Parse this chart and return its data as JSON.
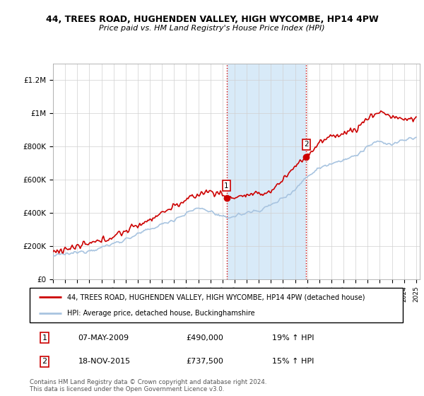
{
  "title": "44, TREES ROAD, HUGHENDEN VALLEY, HIGH WYCOMBE, HP14 4PW",
  "subtitle": "Price paid vs. HM Land Registry's House Price Index (HPI)",
  "legend_line1": "44, TREES ROAD, HUGHENDEN VALLEY, HIGH WYCOMBE, HP14 4PW (detached house)",
  "legend_line2": "HPI: Average price, detached house, Buckinghamshire",
  "annotation1_date": "07-MAY-2009",
  "annotation1_price": "£490,000",
  "annotation1_hpi": "19% ↑ HPI",
  "annotation1_year": 2009.35,
  "annotation1_val": 490000,
  "annotation2_date": "18-NOV-2015",
  "annotation2_price": "£737,500",
  "annotation2_hpi": "15% ↑ HPI",
  "annotation2_year": 2015.88,
  "annotation2_val": 737500,
  "footer": "Contains HM Land Registry data © Crown copyright and database right 2024.\nThis data is licensed under the Open Government Licence v3.0.",
  "hpi_color": "#a8c4e0",
  "price_color": "#cc0000",
  "shaded_color": "#d8eaf8",
  "ylim": [
    0,
    1300000
  ],
  "yticks": [
    0,
    200000,
    400000,
    600000,
    800000,
    1000000,
    1200000
  ],
  "ytick_labels": [
    "£0",
    "£200K",
    "£400K",
    "£600K",
    "£800K",
    "£1M",
    "£1.2M"
  ],
  "title_fontsize": 9,
  "subtitle_fontsize": 8
}
